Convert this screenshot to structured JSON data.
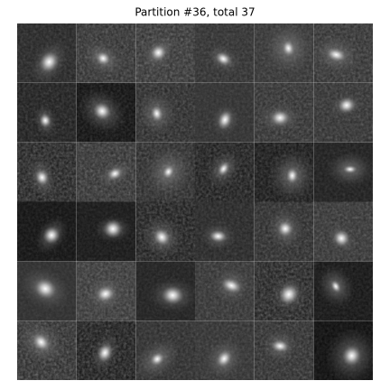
{
  "title": "Partition #36, total 37"
}
